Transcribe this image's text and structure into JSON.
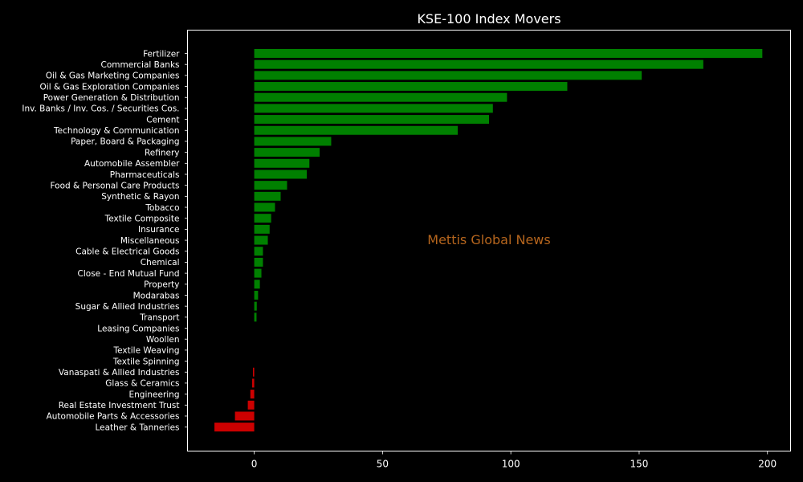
{
  "chart_data": {
    "type": "bar",
    "orientation": "horizontal",
    "title": "KSE-100 Index Movers",
    "xlabel": "",
    "ylabel": "",
    "xlim": [
      -26,
      209
    ],
    "xticks": [
      0,
      50,
      100,
      150,
      200
    ],
    "grid": false,
    "legend": "none",
    "positive_color": "#008000",
    "negative_color": "#cc0000",
    "background_color": "#000000",
    "categories": [
      "Fertilizer",
      "Commercial Banks",
      "Oil & Gas Marketing Companies",
      "Oil & Gas Exploration Companies",
      "Power Generation & Distribution",
      "Inv. Banks / Inv. Cos. / Securities Cos.",
      "Cement",
      "Technology & Communication",
      "Paper, Board & Packaging",
      "Refinery",
      "Automobile Assembler",
      "Pharmaceuticals",
      "Food & Personal Care Products",
      "Synthetic & Rayon",
      "Tobacco",
      "Textile Composite",
      "Insurance",
      "Miscellaneous",
      "Cable & Electrical Goods",
      "Chemical",
      "Close - End Mutual Fund",
      "Property",
      "Modarabas",
      "Sugar & Allied Industries",
      "Transport",
      "Leasing Companies",
      "Woollen",
      "Textile Weaving",
      "Textile Spinning",
      "Vanaspati & Allied Industries",
      "Glass & Ceramics",
      "Engineering",
      "Real Estate Investment Trust",
      "Automobile Parts & Accessories",
      "Leather & Tanneries"
    ],
    "values": [
      198,
      175,
      151,
      122,
      98.5,
      93,
      91.5,
      79.3,
      30,
      25.5,
      21.5,
      20.5,
      12.8,
      10.3,
      8.1,
      6.6,
      6.0,
      5.3,
      3.4,
      3.4,
      2.8,
      2.2,
      1.5,
      1.0,
      0.9,
      0,
      0,
      0,
      0,
      -0.5,
      -0.8,
      -1.5,
      -2.5,
      -7.5,
      -15.5
    ]
  },
  "watermark": {
    "text": "Mettis Global News",
    "color": "#b5651d"
  }
}
